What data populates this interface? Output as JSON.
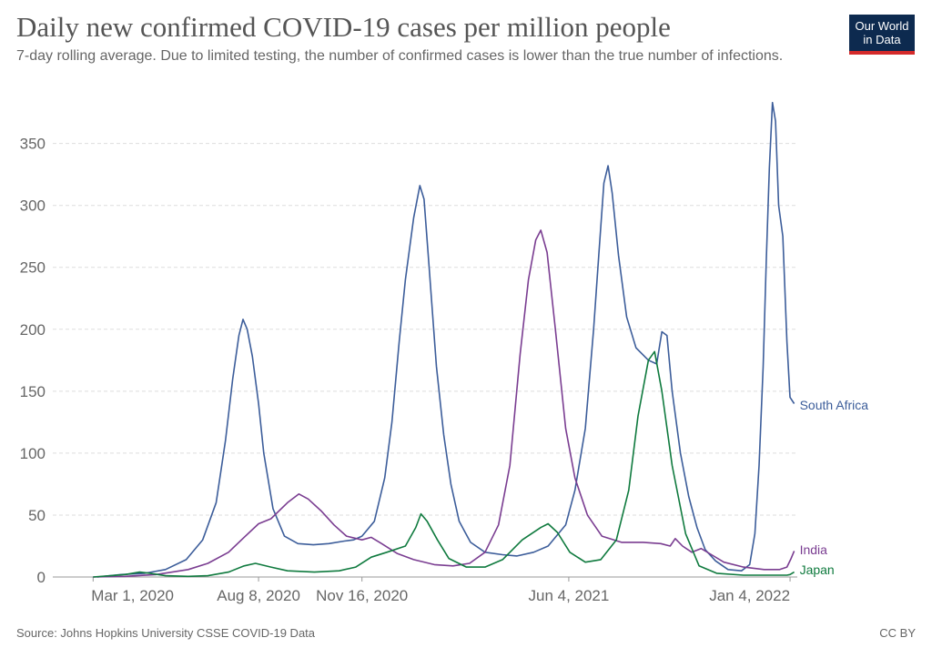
{
  "header": {
    "title": "Daily new confirmed COVID-19 cases per million people",
    "subtitle": "7-day rolling average. Due to limited testing, the number of confirmed cases is lower than the true number of infections.",
    "logo_line1": "Our World",
    "logo_line2": "in Data"
  },
  "footer": {
    "source": "Source: Johns Hopkins University CSSE COVID-19 Data",
    "license": "CC BY"
  },
  "chart_data": {
    "type": "line",
    "xlabel": "",
    "ylabel": "",
    "x_ticks": [
      "Mar 1, 2020",
      "Aug 8, 2020",
      "Nov 16, 2020",
      "Jun 4, 2021",
      "Jan 4, 2022"
    ],
    "x_tick_dates": [
      "2020-03-01",
      "2020-08-08",
      "2020-11-16",
      "2021-06-04",
      "2022-01-04"
    ],
    "xlim": [
      "2020-01-22",
      "2022-01-11"
    ],
    "y_ticks": [
      0,
      50,
      100,
      150,
      200,
      250,
      300,
      350
    ],
    "ylim": [
      0,
      385
    ],
    "grid": "horizontal dashed",
    "legend": "end-of-line labels",
    "series": [
      {
        "name": "South Africa",
        "color": "#3c5d9a",
        "points": [
          [
            "2020-03-05",
            0
          ],
          [
            "2020-03-28",
            2
          ],
          [
            "2020-04-20",
            3
          ],
          [
            "2020-05-10",
            6
          ],
          [
            "2020-05-30",
            14
          ],
          [
            "2020-06-15",
            30
          ],
          [
            "2020-06-28",
            60
          ],
          [
            "2020-07-07",
            110
          ],
          [
            "2020-07-14",
            160
          ],
          [
            "2020-07-20",
            195
          ],
          [
            "2020-07-24",
            208
          ],
          [
            "2020-07-28",
            200
          ],
          [
            "2020-08-02",
            178
          ],
          [
            "2020-08-08",
            140
          ],
          [
            "2020-08-13",
            100
          ],
          [
            "2020-08-22",
            55
          ],
          [
            "2020-09-02",
            33
          ],
          [
            "2020-09-15",
            27
          ],
          [
            "2020-09-30",
            26
          ],
          [
            "2020-10-15",
            27
          ],
          [
            "2020-10-30",
            29
          ],
          [
            "2020-11-08",
            30
          ],
          [
            "2020-11-16",
            33
          ],
          [
            "2020-11-28",
            45
          ],
          [
            "2020-12-08",
            80
          ],
          [
            "2020-12-15",
            125
          ],
          [
            "2020-12-22",
            190
          ],
          [
            "2020-12-28",
            240
          ],
          [
            "2021-01-05",
            290
          ],
          [
            "2021-01-11",
            316
          ],
          [
            "2021-01-15",
            305
          ],
          [
            "2021-01-20",
            250
          ],
          [
            "2021-01-27",
            170
          ],
          [
            "2021-02-03",
            115
          ],
          [
            "2021-02-10",
            75
          ],
          [
            "2021-02-18",
            45
          ],
          [
            "2021-03-01",
            28
          ],
          [
            "2021-03-15",
            20
          ],
          [
            "2021-04-01",
            18
          ],
          [
            "2021-04-15",
            17
          ],
          [
            "2021-05-01",
            20
          ],
          [
            "2021-05-15",
            25
          ],
          [
            "2021-06-01",
            42
          ],
          [
            "2021-06-10",
            70
          ],
          [
            "2021-06-20",
            120
          ],
          [
            "2021-06-28",
            200
          ],
          [
            "2021-07-03",
            260
          ],
          [
            "2021-07-08",
            318
          ],
          [
            "2021-07-12",
            332
          ],
          [
            "2021-07-16",
            310
          ],
          [
            "2021-07-22",
            260
          ],
          [
            "2021-07-30",
            210
          ],
          [
            "2021-08-08",
            185
          ],
          [
            "2021-08-20",
            175
          ],
          [
            "2021-08-28",
            172
          ],
          [
            "2021-09-02",
            198
          ],
          [
            "2021-09-07",
            195
          ],
          [
            "2021-09-12",
            150
          ],
          [
            "2021-09-20",
            100
          ],
          [
            "2021-09-28",
            65
          ],
          [
            "2021-10-06",
            40
          ],
          [
            "2021-10-14",
            22
          ],
          [
            "2021-10-24",
            13
          ],
          [
            "2021-11-05",
            6
          ],
          [
            "2021-11-18",
            5
          ],
          [
            "2021-11-26",
            10
          ],
          [
            "2021-12-01",
            35
          ],
          [
            "2021-12-05",
            90
          ],
          [
            "2021-12-09",
            170
          ],
          [
            "2021-12-12",
            255
          ],
          [
            "2021-12-15",
            330
          ],
          [
            "2021-12-18",
            383
          ],
          [
            "2021-12-21",
            368
          ],
          [
            "2021-12-24",
            300
          ],
          [
            "2021-12-28",
            275
          ],
          [
            "2022-01-01",
            190
          ],
          [
            "2022-01-04",
            145
          ],
          [
            "2022-01-08",
            140
          ]
        ]
      },
      {
        "name": "India",
        "color": "#7a3d91",
        "points": [
          [
            "2020-03-01",
            0
          ],
          [
            "2020-04-01",
            0.5
          ],
          [
            "2020-05-01",
            2
          ],
          [
            "2020-06-01",
            6
          ],
          [
            "2020-06-20",
            11
          ],
          [
            "2020-07-10",
            20
          ],
          [
            "2020-07-25",
            32
          ],
          [
            "2020-08-08",
            43
          ],
          [
            "2020-08-20",
            47
          ],
          [
            "2020-09-05",
            60
          ],
          [
            "2020-09-16",
            67
          ],
          [
            "2020-09-25",
            63
          ],
          [
            "2020-10-08",
            53
          ],
          [
            "2020-10-20",
            42
          ],
          [
            "2020-11-01",
            33
          ],
          [
            "2020-11-16",
            30
          ],
          [
            "2020-11-25",
            32
          ],
          [
            "2020-12-05",
            27
          ],
          [
            "2020-12-20",
            19
          ],
          [
            "2021-01-05",
            14
          ],
          [
            "2021-01-25",
            10
          ],
          [
            "2021-02-12",
            9
          ],
          [
            "2021-02-28",
            11
          ],
          [
            "2021-03-15",
            20
          ],
          [
            "2021-03-28",
            42
          ],
          [
            "2021-04-08",
            90
          ],
          [
            "2021-04-18",
            180
          ],
          [
            "2021-04-26",
            240
          ],
          [
            "2021-05-03",
            272
          ],
          [
            "2021-05-08",
            280
          ],
          [
            "2021-05-14",
            262
          ],
          [
            "2021-05-22",
            200
          ],
          [
            "2021-06-01",
            120
          ],
          [
            "2021-06-10",
            80
          ],
          [
            "2021-06-22",
            50
          ],
          [
            "2021-07-06",
            33
          ],
          [
            "2021-07-25",
            28
          ],
          [
            "2021-08-15",
            28
          ],
          [
            "2021-09-01",
            27
          ],
          [
            "2021-09-10",
            25
          ],
          [
            "2021-09-15",
            31
          ],
          [
            "2021-09-22",
            25
          ],
          [
            "2021-10-01",
            20
          ],
          [
            "2021-10-10",
            23
          ],
          [
            "2021-10-20",
            18
          ],
          [
            "2021-11-01",
            12
          ],
          [
            "2021-11-20",
            8
          ],
          [
            "2021-12-10",
            6
          ],
          [
            "2021-12-25",
            6
          ],
          [
            "2022-01-01",
            8
          ],
          [
            "2022-01-05",
            15
          ],
          [
            "2022-01-08",
            21
          ]
        ]
      },
      {
        "name": "Japan",
        "color": "#0f7a3e",
        "points": [
          [
            "2020-03-01",
            0
          ],
          [
            "2020-04-01",
            2
          ],
          [
            "2020-04-15",
            4
          ],
          [
            "2020-04-25",
            3
          ],
          [
            "2020-05-10",
            1
          ],
          [
            "2020-06-01",
            0.5
          ],
          [
            "2020-06-20",
            1
          ],
          [
            "2020-07-10",
            4
          ],
          [
            "2020-07-25",
            9
          ],
          [
            "2020-08-05",
            11
          ],
          [
            "2020-08-20",
            8
          ],
          [
            "2020-09-05",
            5
          ],
          [
            "2020-10-01",
            4
          ],
          [
            "2020-10-25",
            5
          ],
          [
            "2020-11-10",
            8
          ],
          [
            "2020-11-25",
            16
          ],
          [
            "2020-12-10",
            20
          ],
          [
            "2020-12-28",
            25
          ],
          [
            "2021-01-07",
            40
          ],
          [
            "2021-01-12",
            51
          ],
          [
            "2021-01-18",
            45
          ],
          [
            "2021-01-28",
            30
          ],
          [
            "2021-02-08",
            15
          ],
          [
            "2021-02-25",
            8
          ],
          [
            "2021-03-15",
            8
          ],
          [
            "2021-04-01",
            14
          ],
          [
            "2021-04-20",
            30
          ],
          [
            "2021-05-08",
            40
          ],
          [
            "2021-05-15",
            43
          ],
          [
            "2021-05-24",
            36
          ],
          [
            "2021-06-05",
            20
          ],
          [
            "2021-06-20",
            12
          ],
          [
            "2021-07-05",
            14
          ],
          [
            "2021-07-20",
            30
          ],
          [
            "2021-08-01",
            70
          ],
          [
            "2021-08-10",
            130
          ],
          [
            "2021-08-20",
            175
          ],
          [
            "2021-08-26",
            182
          ],
          [
            "2021-09-02",
            150
          ],
          [
            "2021-09-12",
            90
          ],
          [
            "2021-09-25",
            35
          ],
          [
            "2021-10-08",
            9
          ],
          [
            "2021-10-25",
            3
          ],
          [
            "2021-11-20",
            1.5
          ],
          [
            "2021-12-20",
            1.5
          ],
          [
            "2022-01-01",
            1.5
          ],
          [
            "2022-01-04",
            2
          ],
          [
            "2022-01-08",
            4
          ]
        ]
      }
    ]
  }
}
